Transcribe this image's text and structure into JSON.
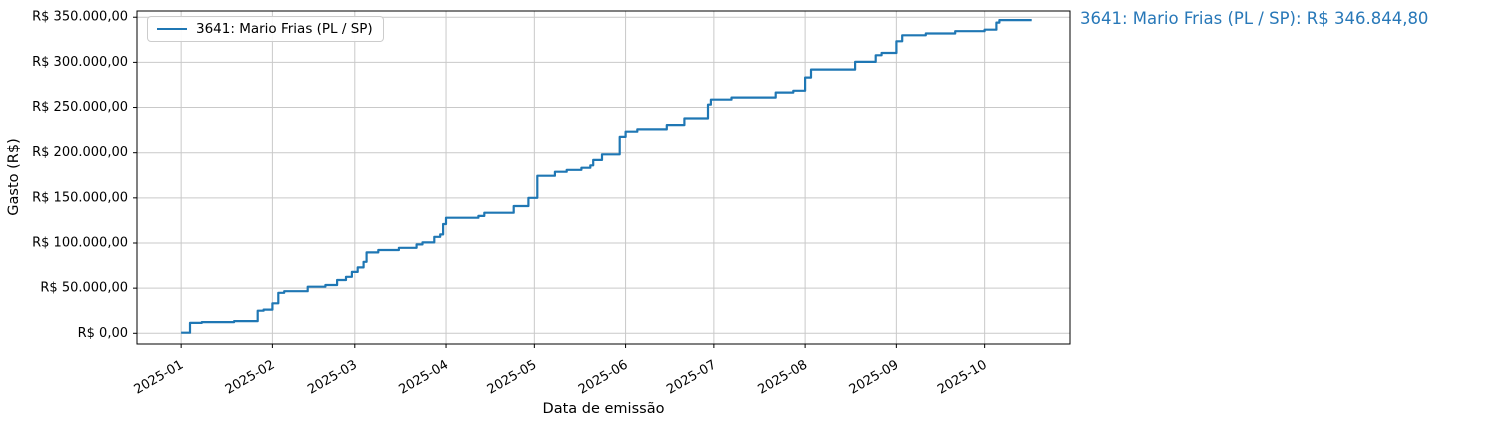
{
  "annotation": {
    "text": "3641: Mario Frias (PL / SP): R$ 346.844,80",
    "color": "#2878b8"
  },
  "chart_data": {
    "type": "line",
    "line_style": "step-post",
    "title": "",
    "xlabel": "Data de emissão",
    "ylabel": "Gasto (R$)",
    "grid": true,
    "legend_position": "upper-left",
    "x_range": [
      "2024-12-17",
      "2025-10-30"
    ],
    "ylim": [
      -11850,
      356900
    ],
    "colors": {
      "line": "#1f77b4",
      "grid": "#c9c9c9",
      "axis": "#000000"
    },
    "x_ticks": [
      {
        "date": "2025-01-01",
        "label": "2025-01"
      },
      {
        "date": "2025-02-01",
        "label": "2025-02"
      },
      {
        "date": "2025-03-01",
        "label": "2025-03"
      },
      {
        "date": "2025-04-01",
        "label": "2025-04"
      },
      {
        "date": "2025-05-01",
        "label": "2025-05"
      },
      {
        "date": "2025-06-01",
        "label": "2025-06"
      },
      {
        "date": "2025-07-01",
        "label": "2025-07"
      },
      {
        "date": "2025-08-01",
        "label": "2025-08"
      },
      {
        "date": "2025-09-01",
        "label": "2025-09"
      },
      {
        "date": "2025-10-01",
        "label": "2025-10"
      }
    ],
    "y_ticks": [
      {
        "value": 0,
        "label": "R$ 0,00"
      },
      {
        "value": 50000,
        "label": "R$ 50.000,00"
      },
      {
        "value": 100000,
        "label": "R$ 100.000,00"
      },
      {
        "value": 150000,
        "label": "R$ 150.000,00"
      },
      {
        "value": 200000,
        "label": "R$ 200.000,00"
      },
      {
        "value": 250000,
        "label": "R$ 250.000,00"
      },
      {
        "value": 300000,
        "label": "R$ 300.000,00"
      },
      {
        "value": 350000,
        "label": "R$ 350.000,00"
      }
    ],
    "series": [
      {
        "name": "3641: Mario Frias (PL / SP)",
        "color": "#1f77b4",
        "final_value_label": "R$ 346.844,80",
        "points": [
          {
            "date": "2025-01-01",
            "value": 700
          },
          {
            "date": "2025-01-04",
            "value": 11500
          },
          {
            "date": "2025-01-08",
            "value": 12400
          },
          {
            "date": "2025-01-19",
            "value": 13500
          },
          {
            "date": "2025-01-27",
            "value": 25000
          },
          {
            "date": "2025-01-29",
            "value": 26200
          },
          {
            "date": "2025-02-01",
            "value": 33200
          },
          {
            "date": "2025-02-03",
            "value": 44900
          },
          {
            "date": "2025-02-05",
            "value": 46600
          },
          {
            "date": "2025-02-13",
            "value": 51600
          },
          {
            "date": "2025-02-19",
            "value": 53500
          },
          {
            "date": "2025-02-23",
            "value": 59000
          },
          {
            "date": "2025-02-26",
            "value": 62600
          },
          {
            "date": "2025-02-28",
            "value": 68000
          },
          {
            "date": "2025-03-02",
            "value": 73000
          },
          {
            "date": "2025-03-04",
            "value": 79200
          },
          {
            "date": "2025-03-05",
            "value": 89600
          },
          {
            "date": "2025-03-09",
            "value": 92200
          },
          {
            "date": "2025-03-16",
            "value": 94700
          },
          {
            "date": "2025-03-22",
            "value": 98400
          },
          {
            "date": "2025-03-24",
            "value": 100700
          },
          {
            "date": "2025-03-28",
            "value": 106900
          },
          {
            "date": "2025-03-30",
            "value": 109500
          },
          {
            "date": "2025-03-31",
            "value": 121000
          },
          {
            "date": "2025-04-01",
            "value": 128000
          },
          {
            "date": "2025-04-12",
            "value": 130000
          },
          {
            "date": "2025-04-14",
            "value": 133500
          },
          {
            "date": "2025-04-24",
            "value": 141000
          },
          {
            "date": "2025-04-29",
            "value": 150100
          },
          {
            "date": "2025-05-02",
            "value": 174500
          },
          {
            "date": "2025-05-08",
            "value": 178900
          },
          {
            "date": "2025-05-12",
            "value": 181000
          },
          {
            "date": "2025-05-17",
            "value": 183400
          },
          {
            "date": "2025-05-20",
            "value": 186000
          },
          {
            "date": "2025-05-21",
            "value": 192000
          },
          {
            "date": "2025-05-24",
            "value": 198200
          },
          {
            "date": "2025-05-30",
            "value": 217500
          },
          {
            "date": "2025-06-01",
            "value": 223200
          },
          {
            "date": "2025-06-05",
            "value": 225800
          },
          {
            "date": "2025-06-15",
            "value": 230500
          },
          {
            "date": "2025-06-21",
            "value": 237900
          },
          {
            "date": "2025-06-29",
            "value": 253100
          },
          {
            "date": "2025-06-30",
            "value": 258700
          },
          {
            "date": "2025-07-07",
            "value": 261000
          },
          {
            "date": "2025-07-22",
            "value": 266500
          },
          {
            "date": "2025-07-28",
            "value": 268500
          },
          {
            "date": "2025-08-01",
            "value": 283200
          },
          {
            "date": "2025-08-03",
            "value": 292000
          },
          {
            "date": "2025-08-18",
            "value": 300500
          },
          {
            "date": "2025-08-25",
            "value": 307800
          },
          {
            "date": "2025-08-27",
            "value": 310400
          },
          {
            "date": "2025-09-01",
            "value": 323400
          },
          {
            "date": "2025-09-03",
            "value": 330000
          },
          {
            "date": "2025-09-11",
            "value": 332000
          },
          {
            "date": "2025-09-21",
            "value": 334500
          },
          {
            "date": "2025-10-01",
            "value": 336200
          },
          {
            "date": "2025-10-05",
            "value": 344000
          },
          {
            "date": "2025-10-06",
            "value": 346844.8
          },
          {
            "date": "2025-10-17",
            "value": 346844.8
          }
        ]
      }
    ]
  }
}
